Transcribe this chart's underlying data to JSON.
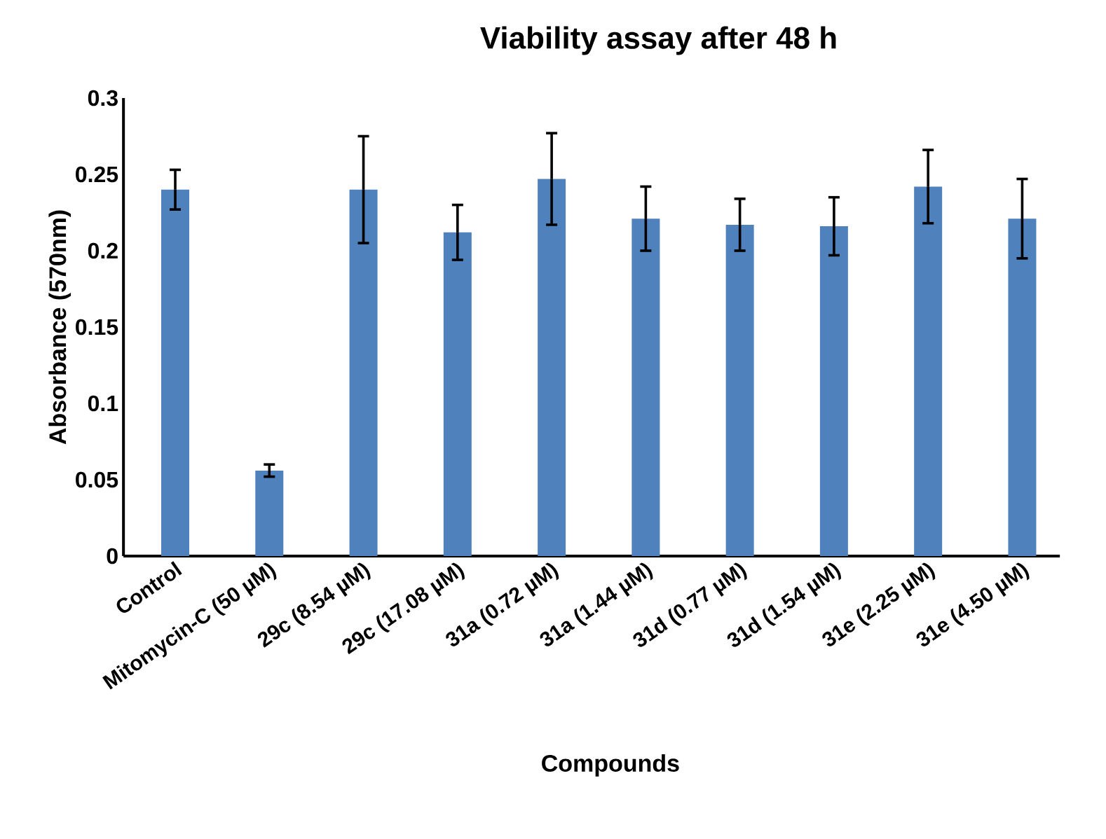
{
  "chart_data": {
    "type": "bar",
    "title": "Viability assay after 48 h",
    "xlabel": "Compounds",
    "ylabel": "Absorbance (570nm)",
    "categories": [
      "Control",
      "Mitomycin-C (50 µM)",
      "29c (8.54 µM)",
      "29c (17.08 µM)",
      "31a (0.72 µM)",
      "31a (1.44 µM)",
      "31d (0.77 µM)",
      "31d (1.54 µM)",
      "31e (2.25 µM)",
      "31e (4.50 µM)"
    ],
    "values": [
      0.24,
      0.056,
      0.24,
      0.212,
      0.247,
      0.221,
      0.217,
      0.216,
      0.242,
      0.221
    ],
    "errors": [
      0.013,
      0.004,
      0.035,
      0.018,
      0.03,
      0.021,
      0.017,
      0.019,
      0.024,
      0.026
    ],
    "color": "#4f81bd",
    "ylim": [
      0,
      0.3
    ],
    "yticks": [
      0,
      0.05,
      0.1,
      0.15,
      0.2,
      0.25,
      0.3
    ],
    "grid": false
  }
}
